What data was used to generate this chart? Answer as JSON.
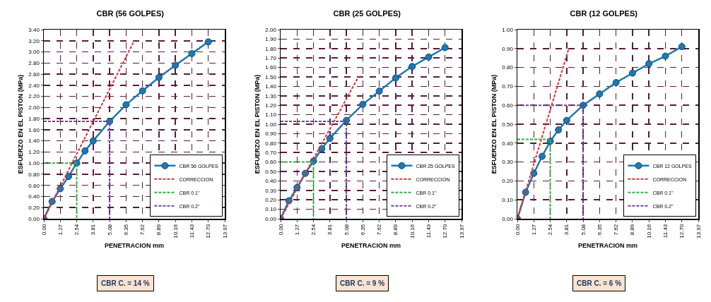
{
  "chart_data": [
    {
      "type": "line",
      "title": "CBR (56 GOLPES)",
      "xlabel": "PENETRACION mm",
      "ylabel": "ESFUERZO EN EL PISTON (MPa)",
      "annotations": [
        "CBR C. = 14 %"
      ],
      "legend": "bottom right",
      "grid": true,
      "xlim": [
        0,
        13.97
      ],
      "xticks": [
        {
          "value": 0,
          "label": "0.00"
        },
        {
          "value": 1.27,
          "label": "1.27"
        },
        {
          "value": 2.54,
          "label": "2.54"
        },
        {
          "value": 3.81,
          "label": "3.81"
        },
        {
          "value": 5.08,
          "label": "5.08"
        },
        {
          "value": 6.35,
          "label": "6.35"
        },
        {
          "value": 7.62,
          "label": "7.62"
        },
        {
          "value": 8.89,
          "label": "8.89"
        },
        {
          "value": 10.16,
          "label": "10.16"
        },
        {
          "value": 11.43,
          "label": "11.43"
        },
        {
          "value": 12.7,
          "label": "12.70"
        },
        {
          "value": 13.97,
          "label": "13.97"
        }
      ],
      "ylim": [
        0,
        3.4
      ],
      "yticks": [
        {
          "value": 0,
          "label": "0.00"
        },
        {
          "value": 0.2,
          "label": "0.20"
        },
        {
          "value": 0.4,
          "label": "0.40"
        },
        {
          "value": 0.6,
          "label": "0.60"
        },
        {
          "value": 0.8,
          "label": "0.80"
        },
        {
          "value": 1,
          "label": "1.00"
        },
        {
          "value": 1.2,
          "label": "1.20"
        },
        {
          "value": 1.4,
          "label": "1.40"
        },
        {
          "value": 1.6,
          "label": "1.60"
        },
        {
          "value": 1.8,
          "label": "1.80"
        },
        {
          "value": 2,
          "label": "2.00"
        },
        {
          "value": 2.2,
          "label": "2.20"
        },
        {
          "value": 2.4,
          "label": "2.40"
        },
        {
          "value": 2.6,
          "label": "2.60"
        },
        {
          "value": 2.8,
          "label": "2.80"
        },
        {
          "value": 3,
          "label": "3.00"
        },
        {
          "value": 3.2,
          "label": "3.20"
        },
        {
          "value": 3.4,
          "label": "3.40"
        }
      ],
      "series": [
        {
          "name": "CBR 56 GOLPES",
          "color": "#1f78b0",
          "marker": "circle",
          "line_style": "solid",
          "x": [
            0,
            0.64,
            1.27,
            1.91,
            2.54,
            3.18,
            3.81,
            5.08,
            6.35,
            7.62,
            8.89,
            10.16,
            11.43,
            12.7
          ],
          "values": [
            0,
            0.31,
            0.54,
            0.76,
            1.0,
            1.22,
            1.4,
            1.75,
            2.05,
            2.3,
            2.54,
            2.76,
            2.97,
            3.18
          ]
        },
        {
          "name": "CORRECCION",
          "color": "#e03030",
          "marker": "none",
          "line_style": "dashed",
          "x": [
            0,
            6.98
          ],
          "values": [
            0,
            3.2
          ]
        },
        {
          "name": "CBR 0.1\"",
          "color": "#30b040",
          "marker": "none",
          "line_style": "dashed",
          "x": [
            0,
            2.54,
            2.54
          ],
          "values": [
            1.0,
            1.0,
            0
          ]
        },
        {
          "name": "CBR 0.2\"",
          "color": "#7040a0",
          "marker": "none",
          "line_style": "dashed",
          "x": [
            0,
            5.08,
            5.08
          ],
          "values": [
            1.75,
            1.75,
            0
          ]
        }
      ]
    },
    {
      "type": "line",
      "title": "CBR (25 GOLPES)",
      "xlabel": "PENETRACION mm",
      "ylabel": "ESFUERZO EN EL PISTON (MPa)",
      "annotations": [
        "CBR C. = 9 %"
      ],
      "legend": "bottom right",
      "grid": true,
      "xlim": [
        0,
        13.97
      ],
      "xticks": [
        {
          "value": 0,
          "label": "0.00"
        },
        {
          "value": 1.27,
          "label": "1.27"
        },
        {
          "value": 2.54,
          "label": "2.54"
        },
        {
          "value": 3.81,
          "label": "3.81"
        },
        {
          "value": 5.08,
          "label": "5.08"
        },
        {
          "value": 6.35,
          "label": "6.35"
        },
        {
          "value": 7.62,
          "label": "7.62"
        },
        {
          "value": 8.89,
          "label": "8.89"
        },
        {
          "value": 10.16,
          "label": "10.16"
        },
        {
          "value": 11.43,
          "label": "11.43"
        },
        {
          "value": 12.7,
          "label": "12.70"
        },
        {
          "value": 13.97,
          "label": "13.97"
        }
      ],
      "ylim": [
        0,
        2.0
      ],
      "yticks": [
        {
          "value": 0,
          "label": "0.00"
        },
        {
          "value": 0.1,
          "label": "0.10"
        },
        {
          "value": 0.2,
          "label": "0.20"
        },
        {
          "value": 0.3,
          "label": "0.30"
        },
        {
          "value": 0.4,
          "label": "0.40"
        },
        {
          "value": 0.5,
          "label": "0.50"
        },
        {
          "value": 0.6,
          "label": "0.60"
        },
        {
          "value": 0.7,
          "label": "0.70"
        },
        {
          "value": 0.8,
          "label": "0.80"
        },
        {
          "value": 0.9,
          "label": "0.90"
        },
        {
          "value": 1,
          "label": "1.00"
        },
        {
          "value": 1.1,
          "label": "1.10"
        },
        {
          "value": 1.2,
          "label": "1.20"
        },
        {
          "value": 1.3,
          "label": "1.30"
        },
        {
          "value": 1.4,
          "label": "1.40"
        },
        {
          "value": 1.5,
          "label": "1.50"
        },
        {
          "value": 1.6,
          "label": "1.60"
        },
        {
          "value": 1.7,
          "label": "1.70"
        },
        {
          "value": 1.8,
          "label": "1.80"
        },
        {
          "value": 1.9,
          "label": "1.90"
        },
        {
          "value": 2,
          "label": "2.00"
        }
      ],
      "series": [
        {
          "name": "CBR 25 GOLPES",
          "color": "#1f78b0",
          "marker": "circle",
          "line_style": "solid",
          "x": [
            0,
            0.64,
            1.27,
            1.91,
            2.54,
            3.18,
            3.81,
            5.08,
            6.35,
            7.62,
            8.89,
            10.16,
            11.43,
            12.7
          ],
          "values": [
            0,
            0.19,
            0.33,
            0.48,
            0.61,
            0.74,
            0.85,
            1.04,
            1.21,
            1.35,
            1.49,
            1.61,
            1.71,
            1.81
          ]
        },
        {
          "name": "CORRECCION",
          "color": "#e03030",
          "marker": "none",
          "line_style": "dashed",
          "x": [
            0,
            6.01
          ],
          "values": [
            0,
            1.5
          ]
        },
        {
          "name": "CBR 0.1\"",
          "color": "#30b040",
          "marker": "none",
          "line_style": "dashed",
          "x": [
            0,
            2.54,
            2.54
          ],
          "values": [
            0.6,
            0.6,
            0
          ]
        },
        {
          "name": "CBR 0.2\"",
          "color": "#7040a0",
          "marker": "none",
          "line_style": "dashed",
          "x": [
            0,
            5.08,
            5.08
          ],
          "values": [
            1.03,
            1.03,
            0
          ]
        }
      ]
    },
    {
      "type": "line",
      "title": "CBR (12 GOLPES)",
      "xlabel": "PENETRACION mm",
      "ylabel": "ESFUERZO EN EL PISTON (MPa)",
      "annotations": [
        "CBR C. = 6 %"
      ],
      "legend": "bottom right",
      "grid": true,
      "xlim": [
        0,
        13.97
      ],
      "xticks": [
        {
          "value": 0,
          "label": "0.00"
        },
        {
          "value": 1.27,
          "label": "1.27"
        },
        {
          "value": 2.54,
          "label": "2.54"
        },
        {
          "value": 3.81,
          "label": "3.81"
        },
        {
          "value": 5.08,
          "label": "5.08"
        },
        {
          "value": 6.35,
          "label": "6.35"
        },
        {
          "value": 7.62,
          "label": "7.62"
        },
        {
          "value": 8.89,
          "label": "8.89"
        },
        {
          "value": 10.16,
          "label": "10.16"
        },
        {
          "value": 11.43,
          "label": "11.43"
        },
        {
          "value": 12.7,
          "label": "12.70"
        },
        {
          "value": 13.97,
          "label": "13.97"
        }
      ],
      "ylim": [
        0,
        1.0
      ],
      "yticks": [
        {
          "value": 0,
          "label": "0.00"
        },
        {
          "value": 0.1,
          "label": "0.10"
        },
        {
          "value": 0.2,
          "label": "0.20"
        },
        {
          "value": 0.3,
          "label": "0.30"
        },
        {
          "value": 0.4,
          "label": "0.40"
        },
        {
          "value": 0.5,
          "label": "0.50"
        },
        {
          "value": 0.6,
          "label": "0.60"
        },
        {
          "value": 0.7,
          "label": "0.70"
        },
        {
          "value": 0.8,
          "label": "0.80"
        },
        {
          "value": 0.9,
          "label": "0.90"
        },
        {
          "value": 1,
          "label": "1.00"
        }
      ],
      "series": [
        {
          "name": "CBR 12 GOLPES",
          "color": "#1f78b0",
          "marker": "circle",
          "line_style": "solid",
          "x": [
            0,
            0.64,
            1.27,
            1.91,
            2.54,
            3.18,
            3.81,
            5.08,
            6.35,
            7.62,
            8.89,
            10.16,
            11.43,
            12.7
          ],
          "values": [
            0,
            0.14,
            0.24,
            0.33,
            0.41,
            0.47,
            0.52,
            0.6,
            0.66,
            0.72,
            0.77,
            0.82,
            0.86,
            0.91
          ]
        },
        {
          "name": "CORRECCION",
          "color": "#e03030",
          "marker": "none",
          "line_style": "dashed",
          "x": [
            0,
            3.97
          ],
          "values": [
            0,
            0.9
          ]
        },
        {
          "name": "CBR 0.1\"",
          "color": "#30b040",
          "marker": "none",
          "line_style": "dashed",
          "x": [
            0,
            2.54,
            2.54
          ],
          "values": [
            0.42,
            0.42,
            0
          ]
        },
        {
          "name": "CBR 0.2\"",
          "color": "#7040a0",
          "marker": "none",
          "line_style": "dashed",
          "x": [
            0,
            5.08,
            5.08
          ],
          "values": [
            0.6,
            0.6,
            0
          ]
        }
      ]
    }
  ]
}
